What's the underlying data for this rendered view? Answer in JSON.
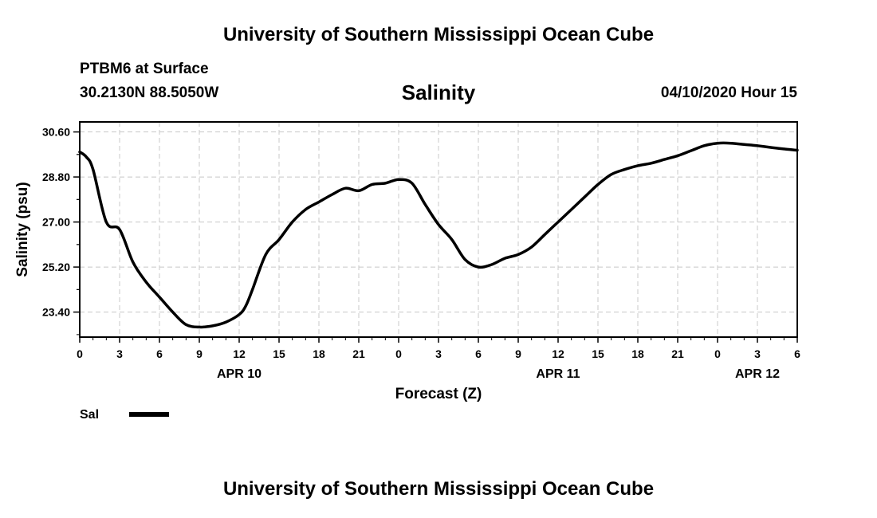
{
  "header": {
    "title": "University of Southern Mississippi Ocean Cube",
    "station": "PTBM6 at Surface",
    "coords": "30.2130N 88.5050W",
    "datetime": "04/10/2020 Hour 15"
  },
  "footer": {
    "title": "University of Southern Mississippi Ocean Cube"
  },
  "chart_data": {
    "type": "line",
    "title": "Salinity",
    "xlabel": "Forecast (Z)",
    "ylabel": "Salinity (psu)",
    "xlim": [
      0,
      54
    ],
    "ylim": [
      22.4,
      31.0
    ],
    "yticks": [
      23.4,
      25.2,
      27.0,
      28.8,
      30.6
    ],
    "ytick_labels": [
      "23.40",
      "25.20",
      "27.00",
      "28.80",
      "30.60"
    ],
    "xticks": [
      0,
      3,
      6,
      9,
      12,
      15,
      18,
      21,
      24,
      27,
      30,
      33,
      36,
      39,
      42,
      45,
      48,
      51,
      54
    ],
    "xtick_labels": [
      "0",
      "3",
      "6",
      "9",
      "12",
      "15",
      "18",
      "21",
      "0",
      "3",
      "6",
      "9",
      "12",
      "15",
      "18",
      "21",
      "0",
      "3",
      "6"
    ],
    "date_labels": [
      {
        "x": 12,
        "label": "APR 10"
      },
      {
        "x": 36,
        "label": "APR 11"
      },
      {
        "x": 51,
        "label": "APR 12"
      }
    ],
    "grid": true,
    "legend": {
      "position": "bottom-left"
    },
    "series": [
      {
        "name": "Sal",
        "color": "#000000",
        "x": [
          0,
          0.5,
          1,
          2,
          3,
          4,
          5,
          6,
          7,
          8,
          9,
          10,
          11,
          12,
          12.5,
          13,
          14,
          15,
          16,
          17,
          18,
          19,
          20,
          21,
          22,
          23,
          24,
          25,
          26,
          27,
          28,
          29,
          30,
          31,
          32,
          33,
          34,
          35,
          36,
          37,
          38,
          39,
          40,
          41,
          42,
          43,
          44,
          45,
          46,
          47,
          48,
          49,
          50,
          51,
          52,
          53,
          54
        ],
        "values": [
          29.8,
          29.6,
          29.1,
          27.0,
          26.7,
          25.4,
          24.6,
          24.0,
          23.4,
          22.9,
          22.8,
          22.85,
          23.0,
          23.3,
          23.65,
          24.3,
          25.7,
          26.3,
          27.0,
          27.5,
          27.8,
          28.1,
          28.35,
          28.25,
          28.5,
          28.55,
          28.7,
          28.55,
          27.7,
          26.9,
          26.3,
          25.5,
          25.2,
          25.3,
          25.55,
          25.7,
          26.0,
          26.5,
          27.0,
          27.5,
          28.0,
          28.5,
          28.9,
          29.1,
          29.25,
          29.35,
          29.5,
          29.65,
          29.85,
          30.05,
          30.15,
          30.15,
          30.1,
          30.05,
          29.98,
          29.92,
          29.87
        ]
      }
    ]
  }
}
